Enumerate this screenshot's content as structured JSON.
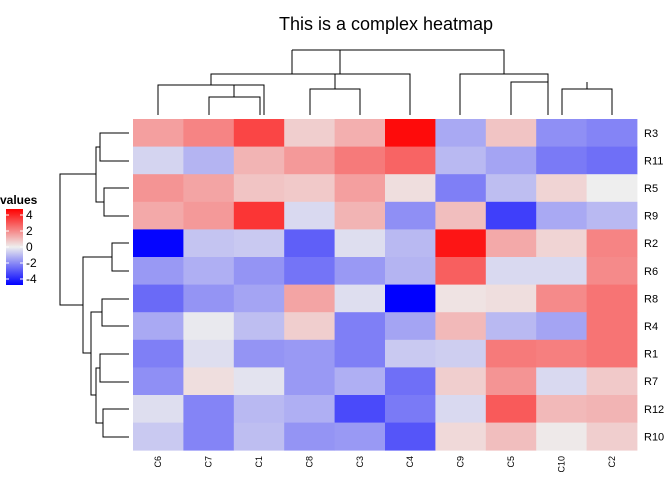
{
  "chart_data": {
    "type": "heatmap",
    "title": "This is a complex heatmap",
    "xlabel": "",
    "ylabel": "",
    "columns": [
      "C6",
      "C7",
      "C1",
      "C8",
      "C3",
      "C4",
      "C9",
      "C5",
      "C10",
      "C2"
    ],
    "rows": [
      "R3",
      "R11",
      "R5",
      "R9",
      "R2",
      "R6",
      "R8",
      "R4",
      "R1",
      "R7",
      "R12",
      "R10"
    ],
    "values": [
      [
        1.5,
        2.0,
        3.2,
        0.6,
        1.2,
        4.3,
        -1.3,
        0.8,
        -1.8,
        -2.0
      ],
      [
        -0.5,
        -1.1,
        1.1,
        1.6,
        2.2,
        2.6,
        -1.0,
        -1.4,
        -2.2,
        -2.4
      ],
      [
        1.7,
        1.4,
        0.8,
        0.7,
        1.5,
        0.3,
        -2.1,
        -0.9,
        0.5,
        0.0
      ],
      [
        1.3,
        1.6,
        3.5,
        -0.4,
        1.1,
        -1.8,
        0.9,
        -3.3,
        -1.3,
        -1.0
      ],
      [
        -4.4,
        -0.8,
        -0.7,
        -2.7,
        -0.3,
        -1.0,
        4.1,
        1.3,
        0.5,
        2.0
      ],
      [
        -1.6,
        -1.2,
        -1.7,
        -2.3,
        -1.6,
        -1.1,
        2.7,
        -0.4,
        -0.4,
        1.9
      ],
      [
        -2.5,
        -1.7,
        -1.4,
        1.4,
        -0.3,
        -4.6,
        0.2,
        0.3,
        1.9,
        2.3
      ],
      [
        -1.3,
        -0.1,
        -0.9,
        0.6,
        -2.1,
        -1.4,
        1.0,
        -1.0,
        -1.4,
        2.3
      ],
      [
        -2.1,
        -0.3,
        -1.7,
        -1.6,
        -2.1,
        -0.7,
        -0.6,
        2.2,
        2.1,
        2.3
      ],
      [
        -1.8,
        0.3,
        -0.2,
        -1.6,
        -1.2,
        -2.4,
        0.6,
        1.7,
        -0.4,
        0.7
      ],
      [
        -0.3,
        -2.0,
        -1.0,
        -1.2,
        -3.1,
        -2.2,
        -0.4,
        2.8,
        1.0,
        1.1
      ],
      [
        -0.7,
        -2.0,
        -0.9,
        -1.7,
        -1.6,
        -2.9,
        0.4,
        0.9,
        0.1,
        0.6
      ]
    ],
    "legend": {
      "title": "values",
      "ticks": [
        "4",
        "2",
        "0",
        "-2",
        "-4"
      ],
      "placement": "left"
    },
    "colors": {
      "low": "#0000ff",
      "mid": "#eeeeee",
      "high": "#ff0000"
    },
    "color_limits": [
      -4.5,
      4.5
    ],
    "column_dendrogram": true,
    "row_dendrogram": true
  }
}
